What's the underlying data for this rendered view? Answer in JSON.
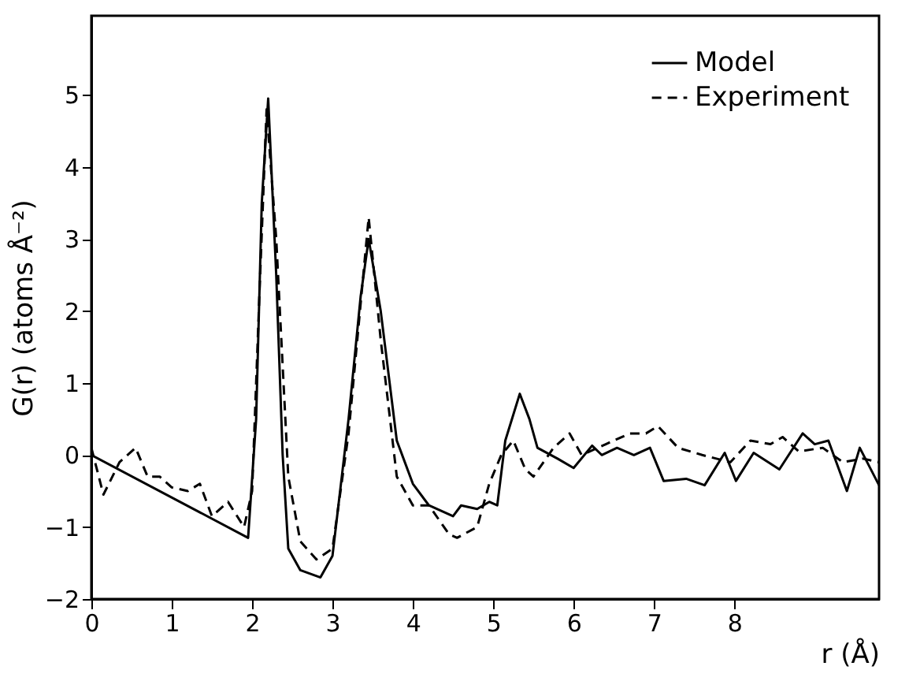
{
  "chart_data": {
    "type": "line",
    "xlabel": "r (Å)",
    "ylabel": "G(r) (atoms Å⁻²)",
    "xlim": [
      0,
      9.8
    ],
    "ylim": [
      -2,
      6.1
    ],
    "xticks": [
      0,
      1,
      2,
      3,
      4,
      5,
      6,
      7,
      8
    ],
    "yticks": [
      -2,
      -1,
      0,
      1,
      2,
      3,
      4,
      5
    ],
    "legend": "top right",
    "grid": false,
    "marker": "none",
    "series": [
      {
        "name": "Model",
        "color": "#000000",
        "line_style": "solid",
        "x": [
          0,
          1.95,
          2.05,
          2.12,
          2.2,
          2.3,
          2.38,
          2.45,
          2.6,
          2.85,
          3.0,
          3.2,
          3.35,
          3.45,
          3.6,
          3.8,
          4.0,
          4.2,
          4.5,
          4.6,
          4.8,
          4.95,
          5.05,
          5.15,
          5.33,
          5.45,
          5.55,
          5.8,
          6.0,
          6.23,
          6.35,
          6.54,
          6.75,
          6.95,
          7.12,
          7.4,
          7.63,
          7.88,
          8.02,
          8.24,
          8.56,
          8.85,
          9.0,
          9.17,
          9.4,
          9.56,
          9.8
        ],
        "values": [
          0,
          -1.15,
          0.5,
          3.5,
          4.95,
          2.5,
          0.0,
          -1.3,
          -1.6,
          -1.7,
          -1.4,
          0.5,
          2.2,
          3.0,
          2.0,
          0.2,
          -0.4,
          -0.7,
          -0.85,
          -0.7,
          -0.75,
          -0.65,
          -0.7,
          0.2,
          0.85,
          0.5,
          0.1,
          -0.05,
          -0.18,
          0.13,
          0.0,
          0.1,
          0.0,
          0.1,
          -0.36,
          -0.33,
          -0.42,
          0.03,
          -0.36,
          0.03,
          -0.2,
          0.3,
          0.15,
          0.2,
          -0.5,
          0.1,
          -0.42
        ]
      },
      {
        "name": "Experiment",
        "color": "#000000",
        "line_style": "dashed",
        "x": [
          0,
          0.15,
          0.35,
          0.55,
          0.7,
          0.85,
          1.0,
          1.2,
          1.35,
          1.5,
          1.7,
          1.9,
          2.0,
          2.1,
          2.18,
          2.3,
          2.45,
          2.6,
          2.8,
          3.0,
          3.2,
          3.45,
          3.6,
          3.8,
          4.0,
          4.2,
          4.45,
          4.55,
          4.8,
          4.95,
          5.1,
          5.25,
          5.4,
          5.5,
          5.75,
          5.95,
          6.1,
          6.4,
          6.7,
          6.9,
          7.05,
          7.3,
          7.6,
          7.95,
          8.2,
          8.45,
          8.6,
          8.8,
          9.1,
          9.35,
          9.6,
          9.8
        ],
        "values": [
          0.1,
          -0.55,
          -0.1,
          0.1,
          -0.3,
          -0.3,
          -0.45,
          -0.5,
          -0.4,
          -0.85,
          -0.65,
          -1.0,
          -0.5,
          2.5,
          4.8,
          3.0,
          -0.3,
          -1.2,
          -1.45,
          -1.3,
          0.3,
          3.3,
          1.6,
          -0.3,
          -0.7,
          -0.7,
          -1.1,
          -1.15,
          -1.0,
          -0.4,
          0.0,
          0.2,
          -0.2,
          -0.3,
          0.1,
          0.3,
          0.0,
          0.15,
          0.3,
          0.3,
          0.4,
          0.1,
          0.0,
          -0.1,
          0.2,
          0.15,
          0.25,
          0.05,
          0.1,
          -0.1,
          -0.05,
          -0.1
        ]
      }
    ]
  }
}
